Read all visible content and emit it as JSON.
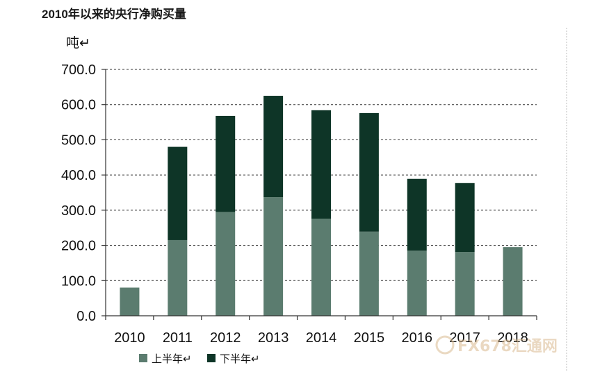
{
  "watermark": {
    "text": "FX678汇通网",
    "icon": "coin-logo-icon"
  },
  "chart_data": {
    "type": "bar",
    "stacked": true,
    "title": "2010年以来的央行净购买量",
    "ylabel": "吨↵",
    "xlabel": "",
    "categories": [
      "2010",
      "2011",
      "2012",
      "2013",
      "2014",
      "2015",
      "2016",
      "2017",
      "2018"
    ],
    "series": [
      {
        "name": "上半年↵",
        "color": "#5b7c6f",
        "values": [
          80,
          215,
          295,
          337,
          276,
          239,
          185,
          181,
          195
        ]
      },
      {
        "name": "下半年↵",
        "color": "#0e3527",
        "values": [
          0,
          265,
          273,
          288,
          308,
          337,
          204,
          196,
          0
        ]
      }
    ],
    "ylim": [
      0,
      700
    ],
    "yticks": [
      "0.0",
      "100.0",
      "200.0",
      "300.0",
      "400.0",
      "500.0",
      "600.0",
      "700.0"
    ],
    "grid": true,
    "legend": "bottom"
  }
}
